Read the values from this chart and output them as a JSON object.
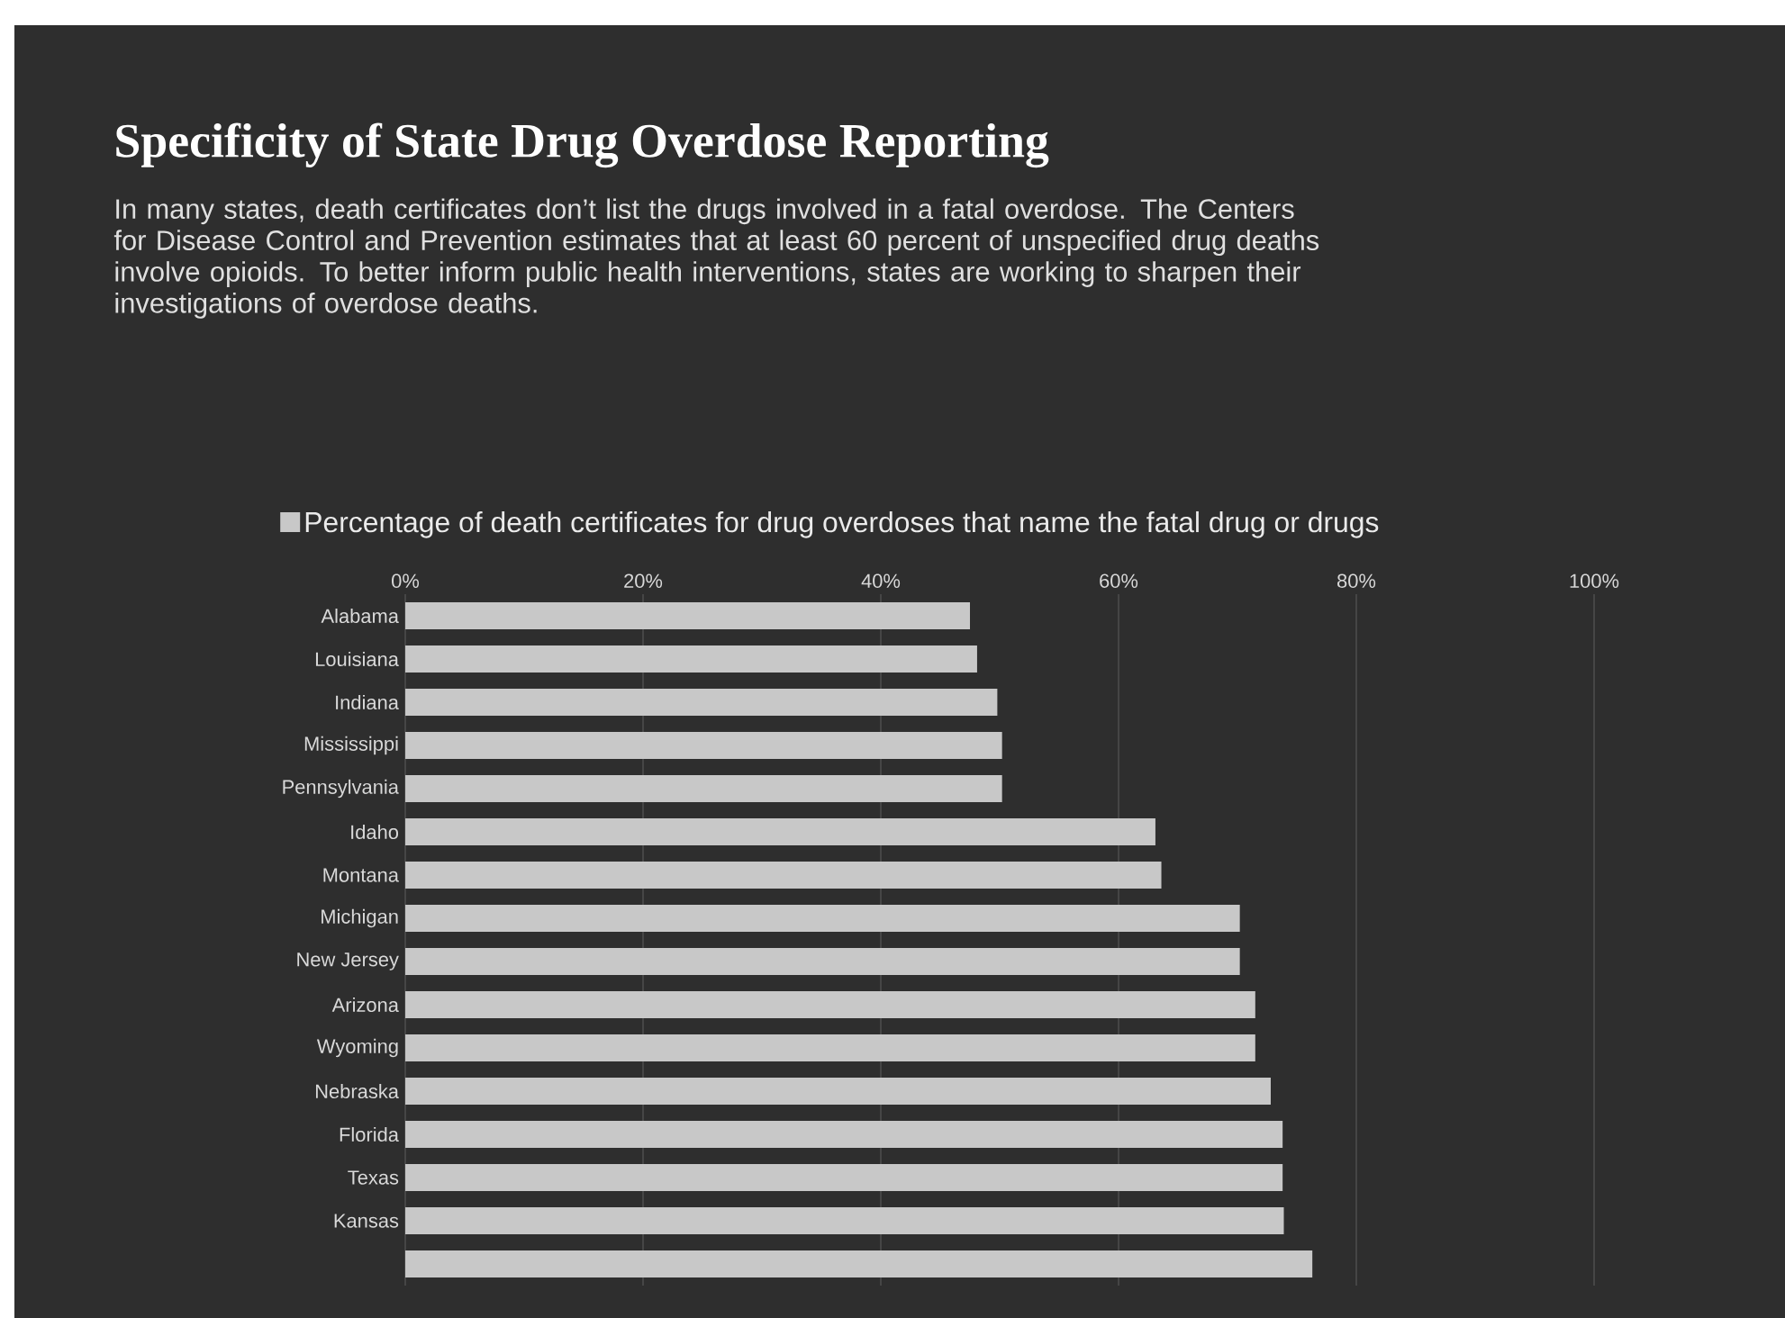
{
  "chart_data": {
    "type": "bar",
    "orientation": "horizontal",
    "title": "Specificity of State Drug Overdose Reporting",
    "subtitle": "In many states, death certificates don’t list the drugs involved in a fatal overdose. The Centers for Disease Control and Prevention estimates that at least 60 percent of unspecified drug deaths involve opioids. To better inform public health interventions, states are working to sharpen their investigations of overdose deaths.",
    "categories": [
      "Alabama",
      "Louisiana",
      "Indiana",
      "Mississippi",
      "Pennsylvania",
      "Idaho",
      "Montana",
      "Michigan",
      "New Jersey",
      "Arizona",
      "Wyoming",
      "Nebraska",
      "Florida",
      "Texas",
      "Kansas",
      null
    ],
    "series": [
      {
        "name": "Percentage of death certificates for drug overdoses that name the fatal drug or drugs",
        "color": "#c8c8c8",
        "values": [
          47.5,
          48.1,
          49.8,
          50.2,
          50.2,
          63.1,
          63.6,
          70.2,
          70.2,
          71.5,
          71.5,
          72.8,
          73.8,
          73.8,
          73.9,
          76.3
        ]
      }
    ],
    "xlim": [
      0,
      100
    ],
    "xticks": [
      {
        "value": 0,
        "label": "0%"
      },
      {
        "value": 20,
        "label": "20%"
      },
      {
        "value": 40,
        "label": "40%"
      },
      {
        "value": 60,
        "label": "60%"
      },
      {
        "value": 80,
        "label": "80%"
      },
      {
        "value": 100,
        "label": "100%"
      }
    ],
    "grid": "x",
    "legend": "top"
  }
}
